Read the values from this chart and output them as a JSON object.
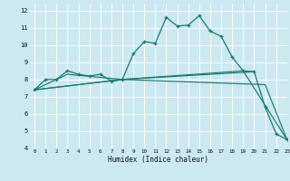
{
  "title": "",
  "xlabel": "Humidex (Indice chaleur)",
  "bg_color": "#cce8f0",
  "grid_color": "#ffffff",
  "line_color": "#1a7a6e",
  "xlim": [
    -0.5,
    23
  ],
  "ylim": [
    4,
    12.4
  ],
  "xticks": [
    0,
    1,
    2,
    3,
    4,
    5,
    6,
    7,
    8,
    9,
    10,
    11,
    12,
    13,
    14,
    15,
    16,
    17,
    18,
    19,
    20,
    21,
    22,
    23
  ],
  "yticks": [
    4,
    5,
    6,
    7,
    8,
    9,
    10,
    11,
    12
  ],
  "series": [
    {
      "x": [
        0,
        1,
        2,
        3,
        4,
        5,
        6,
        7,
        8,
        9,
        10,
        11,
        12,
        13,
        14,
        15,
        16,
        17,
        18,
        19,
        20,
        21,
        22,
        23
      ],
      "y": [
        7.4,
        8.0,
        8.0,
        8.5,
        8.3,
        8.2,
        8.3,
        7.9,
        8.0,
        9.5,
        10.2,
        10.1,
        11.6,
        11.1,
        11.15,
        11.7,
        10.8,
        10.5,
        9.3,
        8.5,
        8.45,
        6.4,
        4.85,
        4.5
      ],
      "marker": true
    },
    {
      "x": [
        0,
        8,
        19,
        23
      ],
      "y": [
        7.4,
        8.0,
        8.5,
        4.5
      ],
      "marker": false
    },
    {
      "x": [
        0,
        8,
        21,
        23
      ],
      "y": [
        7.4,
        8.0,
        7.7,
        4.5
      ],
      "marker": false
    },
    {
      "x": [
        0,
        3,
        8,
        20
      ],
      "y": [
        7.4,
        8.3,
        8.0,
        8.45
      ],
      "marker": false
    }
  ]
}
